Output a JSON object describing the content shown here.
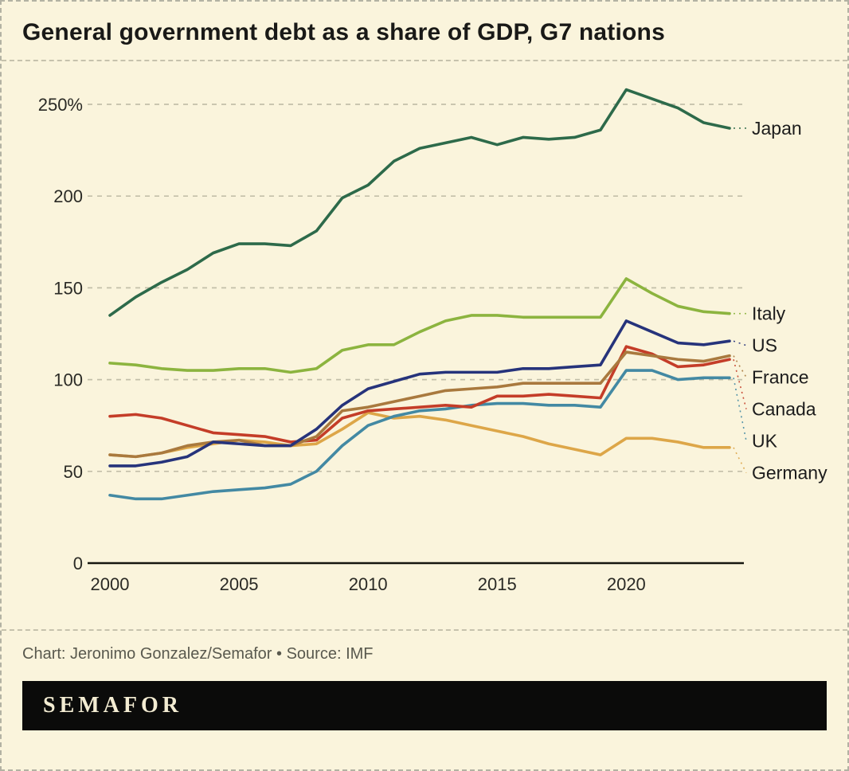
{
  "title": "General government debt as a share of GDP, G7 nations",
  "credit": "Chart: Jeronimo Gonzalez/Semafor • Source: IMF",
  "logo": "SEMAFOR",
  "colors": {
    "background": "#faf4dc",
    "border_dashed": "#b3b2a3",
    "grid": "#c3bfa9",
    "axis": "#15150f",
    "tick_text": "#2a2a25",
    "label_text": "#1c1c1c",
    "logo_bar": "#0b0b0a",
    "logo_text": "#f3ecd2"
  },
  "chart_data": {
    "type": "line",
    "title": "General government debt as a share of GDP, G7 nations",
    "xlabel": "",
    "ylabel": "",
    "x": [
      2000,
      2001,
      2002,
      2003,
      2004,
      2005,
      2006,
      2007,
      2008,
      2009,
      2010,
      2011,
      2012,
      2013,
      2014,
      2015,
      2016,
      2017,
      2018,
      2019,
      2020,
      2021,
      2022,
      2023,
      2024
    ],
    "xticks": [
      2000,
      2005,
      2010,
      2015,
      2020
    ],
    "yticks": [
      0,
      50,
      100,
      150,
      200,
      250
    ],
    "ytick_labels": [
      "0",
      "50",
      "100",
      "150",
      "200",
      "250%"
    ],
    "ylim": [
      0,
      265
    ],
    "grid": "horizontal-dashed",
    "legend_position": "right-edge-labels",
    "series": [
      {
        "name": "Japan",
        "color": "#2d6a4a",
        "values": [
          135,
          145,
          153,
          160,
          169,
          174,
          174,
          173,
          181,
          199,
          206,
          219,
          226,
          229,
          232,
          228,
          232,
          231,
          232,
          236,
          258,
          253,
          248,
          240,
          237
        ]
      },
      {
        "name": "Italy",
        "color": "#8cb43f",
        "values": [
          109,
          108,
          106,
          105,
          105,
          106,
          106,
          104,
          106,
          116,
          119,
          119,
          126,
          132,
          135,
          135,
          134,
          134,
          134,
          134,
          155,
          147,
          140,
          137,
          136
        ]
      },
      {
        "name": "US",
        "color": "#26337b",
        "values": [
          53,
          53,
          55,
          58,
          66,
          65,
          64,
          64,
          73,
          86,
          95,
          99,
          103,
          104,
          104,
          104,
          106,
          106,
          107,
          108,
          132,
          126,
          120,
          119,
          121
        ]
      },
      {
        "name": "France",
        "color": "#a9793e",
        "values": [
          59,
          58,
          60,
          64,
          66,
          67,
          64,
          64,
          69,
          83,
          85,
          88,
          91,
          94,
          95,
          96,
          98,
          98,
          98,
          98,
          115,
          113,
          111,
          110,
          113
        ]
      },
      {
        "name": "Canada",
        "color": "#c43d28",
        "values": [
          80,
          81,
          79,
          75,
          71,
          70,
          69,
          66,
          67,
          79,
          83,
          84,
          85,
          86,
          85,
          91,
          91,
          92,
          91,
          90,
          118,
          114,
          107,
          108,
          111
        ]
      },
      {
        "name": "UK",
        "color": "#4389a3",
        "values": [
          37,
          35,
          35,
          37,
          39,
          40,
          41,
          43,
          50,
          64,
          75,
          80,
          83,
          84,
          86,
          87,
          87,
          86,
          86,
          85,
          105,
          105,
          100,
          101,
          101
        ]
      },
      {
        "name": "Germany",
        "color": "#dda648",
        "values": [
          59,
          58,
          60,
          63,
          65,
          67,
          66,
          64,
          65,
          73,
          82,
          79,
          80,
          78,
          75,
          72,
          69,
          65,
          62,
          59,
          68,
          68,
          66,
          63,
          63
        ]
      }
    ]
  }
}
